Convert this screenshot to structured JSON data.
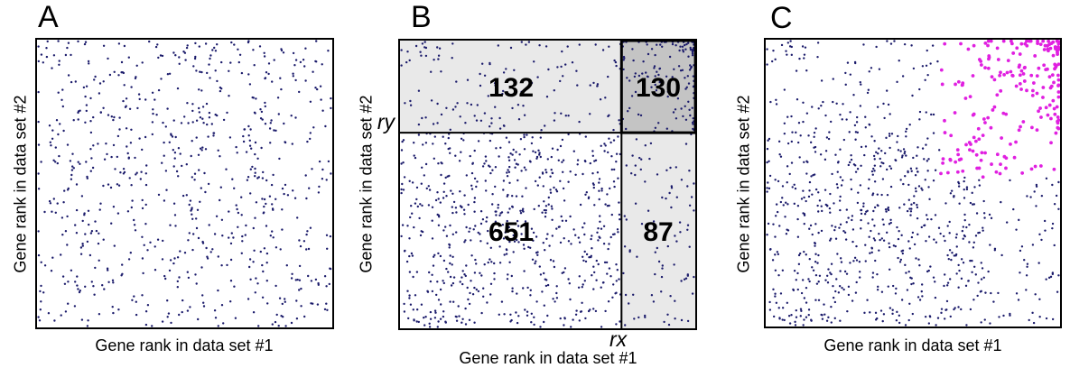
{
  "panels": {
    "a": {
      "letter": "A",
      "xlabel": "Gene rank in data set #1",
      "ylabel": "Gene rank in data set #2"
    },
    "b": {
      "letter": "B",
      "xlabel": "Gene rank in data set #1",
      "ylabel": "Gene rank in data set #2",
      "rx_label": "rx",
      "ry_label": "ry"
    },
    "c": {
      "letter": "C",
      "xlabel": "Gene rank in data set #1",
      "ylabel": "Gene rank in data set #2"
    }
  },
  "colors": {
    "point_navy": "#1b1b6b",
    "point_magenta": "#e020e0",
    "region_light_gray": "#e9e9e9",
    "region_dark_gray": "#c4c4c4",
    "line_black": "#000000",
    "count_text": "#000000"
  },
  "chart_data": [
    {
      "panel": "A",
      "type": "scatter",
      "title": "A",
      "xlabel": "Gene rank in data set #1",
      "ylabel": "Gene rank in data set #2",
      "axes": "unlabeled rank axes, no ticks, square frame",
      "n_points": 750,
      "distribution": "uniform random over full rank space",
      "point_color": "#1b1b6b"
    },
    {
      "panel": "B",
      "type": "scatter",
      "title": "B",
      "xlabel": "Gene rank in data set #1",
      "ylabel": "Gene rank in data set #2",
      "axes": "unlabeled rank axes, no ticks, square frame",
      "total_points": 1000,
      "thresholds": {
        "rx_label": "rx",
        "ry_label": "ry",
        "rx_frac": 0.75,
        "ry_frac": 0.68
      },
      "regions": [
        {
          "key": "top_left",
          "name": "above ry, left of rx",
          "count": 132,
          "fill": "#e9e9e9"
        },
        {
          "key": "top_right",
          "name": "above ry, right of rx",
          "count": 130,
          "fill": "#c4c4c4",
          "note": "dense cluster biased toward top-right corner, thick border"
        },
        {
          "key": "bottom_left",
          "name": "below ry, left of rx",
          "count": 651,
          "fill": "#ffffff"
        },
        {
          "key": "bottom_right",
          "name": "below ry, right of rx",
          "count": 87,
          "fill": "#e9e9e9"
        }
      ],
      "point_color": "#1b1b6b"
    },
    {
      "panel": "C",
      "type": "scatter",
      "title": "C",
      "xlabel": "Gene rank in data set #1",
      "ylabel": "Gene rank in data set #2",
      "axes": "unlabeled rank axes, no ticks, square frame",
      "total_points": 1000,
      "base_point_color": "#1b1b6b",
      "highlight": {
        "color": "#e020e0",
        "region": "top-right overlap cluster (x > ~59% of axis, top ~48% of axis)",
        "hx_frac": 0.59,
        "hy_frac": 0.52,
        "n_points_approx": 210
      }
    }
  ],
  "render": {
    "seed_a": 7,
    "seed_b": 42,
    "navy_radius": 1.2,
    "magenta_radius": 1.9,
    "corner_bias_exp": 1.6
  }
}
